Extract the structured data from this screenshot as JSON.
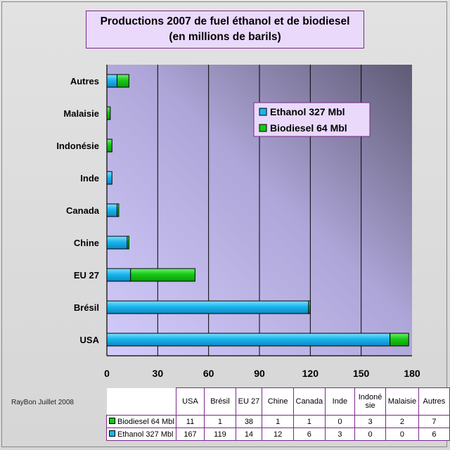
{
  "title_line1": "Productions 2007 de fuel éthanol et de biodiesel",
  "title_line2": "(en millions de barils)",
  "credit": "RayBon Juillet 2008",
  "chart_data": {
    "type": "bar",
    "orientation": "horizontal",
    "stacked": true,
    "categories": [
      "USA",
      "Brésil",
      "EU 27",
      "Chine",
      "Canada",
      "Inde",
      "Indonésie",
      "Malaisie",
      "Autres"
    ],
    "series": [
      {
        "name": "Ethanol 327 Mbl",
        "values": [
          167,
          119,
          14,
          12,
          6,
          3,
          0,
          0,
          6
        ],
        "color": "#1ab6ee"
      },
      {
        "name": "Biodiesel 64 Mbl",
        "values": [
          11,
          1,
          38,
          1,
          1,
          0,
          3,
          2,
          7
        ],
        "color": "#17c917"
      }
    ],
    "xlim": [
      0,
      180
    ],
    "xticks": [
      "0",
      "30",
      "60",
      "90",
      "120",
      "150",
      "180"
    ],
    "grid": true,
    "legend_position": "top-right"
  },
  "table": {
    "headers": [
      "USA",
      "Brésil",
      "EU 27",
      "Chine",
      "Canada",
      "Inde",
      "Indoné sie",
      "Malaisie",
      "Autres"
    ],
    "rows": [
      {
        "label": "Biodiesel 64 Mbl",
        "color": "#17c917",
        "values": [
          "11",
          "1",
          "38",
          "1",
          "1",
          "0",
          "3",
          "2",
          "7"
        ]
      },
      {
        "label": "Ethanol 327 Mbl",
        "color": "#1ab6ee",
        "values": [
          "167",
          "119",
          "14",
          "12",
          "6",
          "3",
          "0",
          "0",
          "6"
        ]
      }
    ]
  }
}
